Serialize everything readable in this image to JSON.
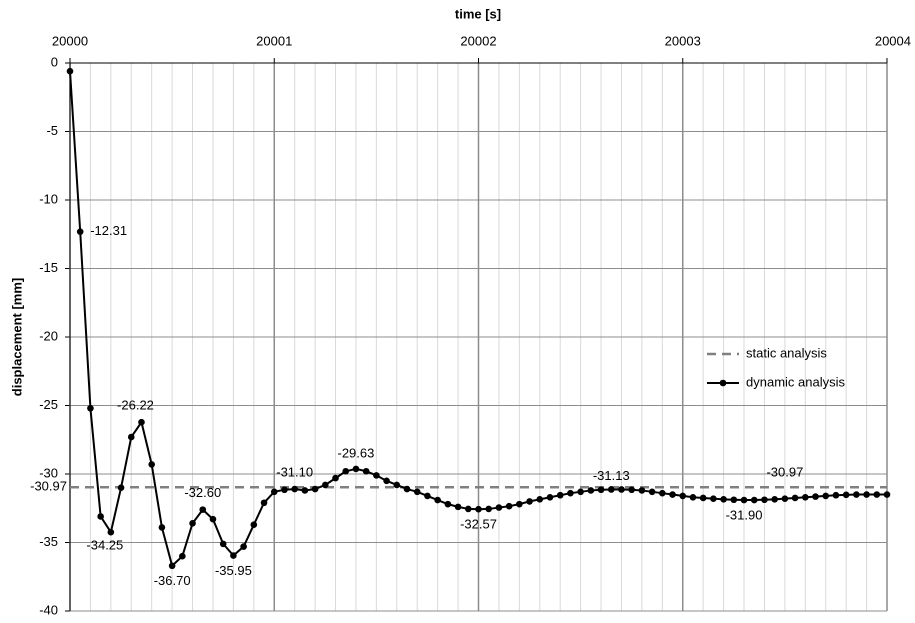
{
  "chart_data": {
    "type": "line",
    "x_label": "time [s]",
    "y_label": "displacement [mm]",
    "xlim": [
      20000,
      20004
    ],
    "xticks": [
      20000,
      20001,
      20002,
      20003,
      20004
    ],
    "ylim": [
      -40,
      0
    ],
    "yticks": [
      0,
      -5,
      -10,
      -15,
      -20,
      -25,
      -30,
      -35,
      -40
    ],
    "grid": true,
    "legend": "right",
    "series": [
      {
        "name": "static analysis",
        "color": "#808080",
        "dash": true,
        "x": [
          20000,
          20004
        ],
        "values": [
          -30.97,
          -30.97
        ],
        "value_labels": [
          "-30.97",
          "-30.97"
        ]
      },
      {
        "name": "dynamic analysis",
        "color": "#000000",
        "markers": true,
        "x": [
          20000,
          20000.05,
          20000.1,
          20000.15,
          20000.2,
          20000.25,
          20000.3,
          20000.35,
          20000.4,
          20000.45,
          20000.5,
          20000.55,
          20000.6,
          20000.65,
          20000.7,
          20000.75,
          20000.8,
          20000.85,
          20000.9,
          20000.95,
          20001,
          20001.05,
          20001.1,
          20001.15,
          20001.2,
          20001.25,
          20001.3,
          20001.35,
          20001.4,
          20001.45,
          20001.5,
          20001.55,
          20001.6,
          20001.65,
          20001.7,
          20001.75,
          20001.8,
          20001.85,
          20001.9,
          20001.95,
          20002,
          20002.05,
          20002.1,
          20002.15,
          20002.2,
          20002.25,
          20002.3,
          20002.35,
          20002.4,
          20002.45,
          20002.5,
          20002.55,
          20002.6,
          20002.65,
          20002.7,
          20002.75,
          20002.8,
          20002.85,
          20002.9,
          20002.95,
          20003,
          20003.05,
          20003.1,
          20003.15,
          20003.2,
          20003.25,
          20003.3,
          20003.35,
          20003.4,
          20003.45,
          20003.5,
          20003.55,
          20003.6,
          20003.65,
          20003.7,
          20003.75,
          20003.8,
          20003.85,
          20003.9,
          20003.95,
          20004
        ],
        "values": [
          -0.6,
          -12.31,
          -25.2,
          -33.1,
          -34.25,
          -31.0,
          -27.3,
          -26.22,
          -29.3,
          -33.9,
          -36.7,
          -36.0,
          -33.6,
          -32.6,
          -33.3,
          -35.1,
          -35.95,
          -35.3,
          -33.7,
          -32.1,
          -31.3,
          -31.15,
          -31.1,
          -31.2,
          -31.1,
          -30.8,
          -30.3,
          -29.8,
          -29.63,
          -29.8,
          -30.1,
          -30.5,
          -30.8,
          -31.1,
          -31.3,
          -31.6,
          -31.9,
          -32.2,
          -32.4,
          -32.55,
          -32.57,
          -32.55,
          -32.45,
          -32.35,
          -32.2,
          -32.0,
          -31.85,
          -31.7,
          -31.55,
          -31.4,
          -31.3,
          -31.2,
          -31.15,
          -31.13,
          -31.13,
          -31.15,
          -31.2,
          -31.3,
          -31.4,
          -31.5,
          -31.6,
          -31.7,
          -31.75,
          -31.8,
          -31.85,
          -31.88,
          -31.9,
          -31.9,
          -31.88,
          -31.85,
          -31.8,
          -31.75,
          -31.7,
          -31.65,
          -31.6,
          -31.55,
          -31.52,
          -31.5,
          -31.5,
          -31.5,
          -31.5
        ],
        "value_labels": [
          null,
          "-12.31",
          null,
          null,
          "-34.25",
          null,
          null,
          "-26.22",
          null,
          null,
          "-36.70",
          null,
          null,
          "-32.60",
          null,
          null,
          "-35.95",
          null,
          null,
          null,
          null,
          null,
          "-31.10",
          null,
          null,
          null,
          null,
          null,
          "-29.63",
          null,
          null,
          null,
          null,
          null,
          null,
          null,
          null,
          null,
          null,
          null,
          "-32.57",
          null,
          null,
          null,
          null,
          null,
          null,
          null,
          null,
          null,
          null,
          null,
          null,
          "-31.13",
          null,
          null,
          null,
          null,
          null,
          null,
          null,
          null,
          null,
          null,
          null,
          null,
          "-31.90",
          null,
          null,
          null,
          null,
          null,
          null,
          null,
          null,
          null,
          null,
          null,
          null,
          null,
          null
        ]
      }
    ]
  }
}
